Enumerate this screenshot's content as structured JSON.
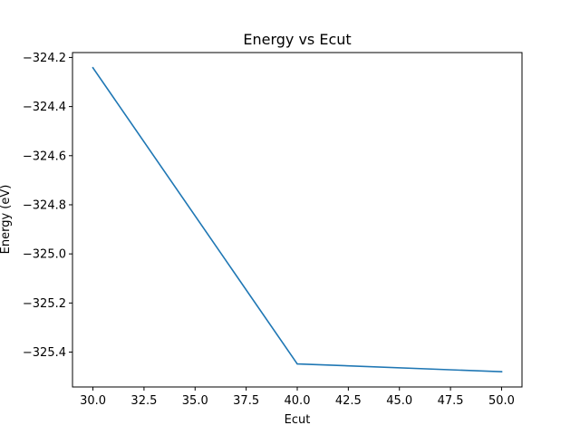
{
  "chart_data": {
    "type": "line",
    "title": "Energy vs Ecut",
    "xlabel": "Ecut",
    "ylabel": "Energy (eV)",
    "xlim": [
      29.0,
      51.0
    ],
    "ylim": [
      -325.542,
      -324.18
    ],
    "x_ticks": [
      30.0,
      32.5,
      35.0,
      37.5,
      40.0,
      42.5,
      45.0,
      47.5,
      50.0
    ],
    "x_tick_labels": [
      "30.0",
      "32.5",
      "35.0",
      "37.5",
      "40.0",
      "42.5",
      "45.0",
      "47.5",
      "50.0"
    ],
    "y_ticks": [
      -324.2,
      -324.4,
      -324.6,
      -324.8,
      -325.0,
      -325.2,
      -325.4
    ],
    "y_tick_labels": [
      "−324.2",
      "−324.4",
      "−324.6",
      "−324.8",
      "−325.0",
      "−325.2",
      "−325.4"
    ],
    "grid": false,
    "series": [
      {
        "color": "#1f77b4",
        "x": [
          30,
          40,
          50
        ],
        "y": [
          -324.242,
          -325.448,
          -325.48
        ]
      }
    ]
  }
}
